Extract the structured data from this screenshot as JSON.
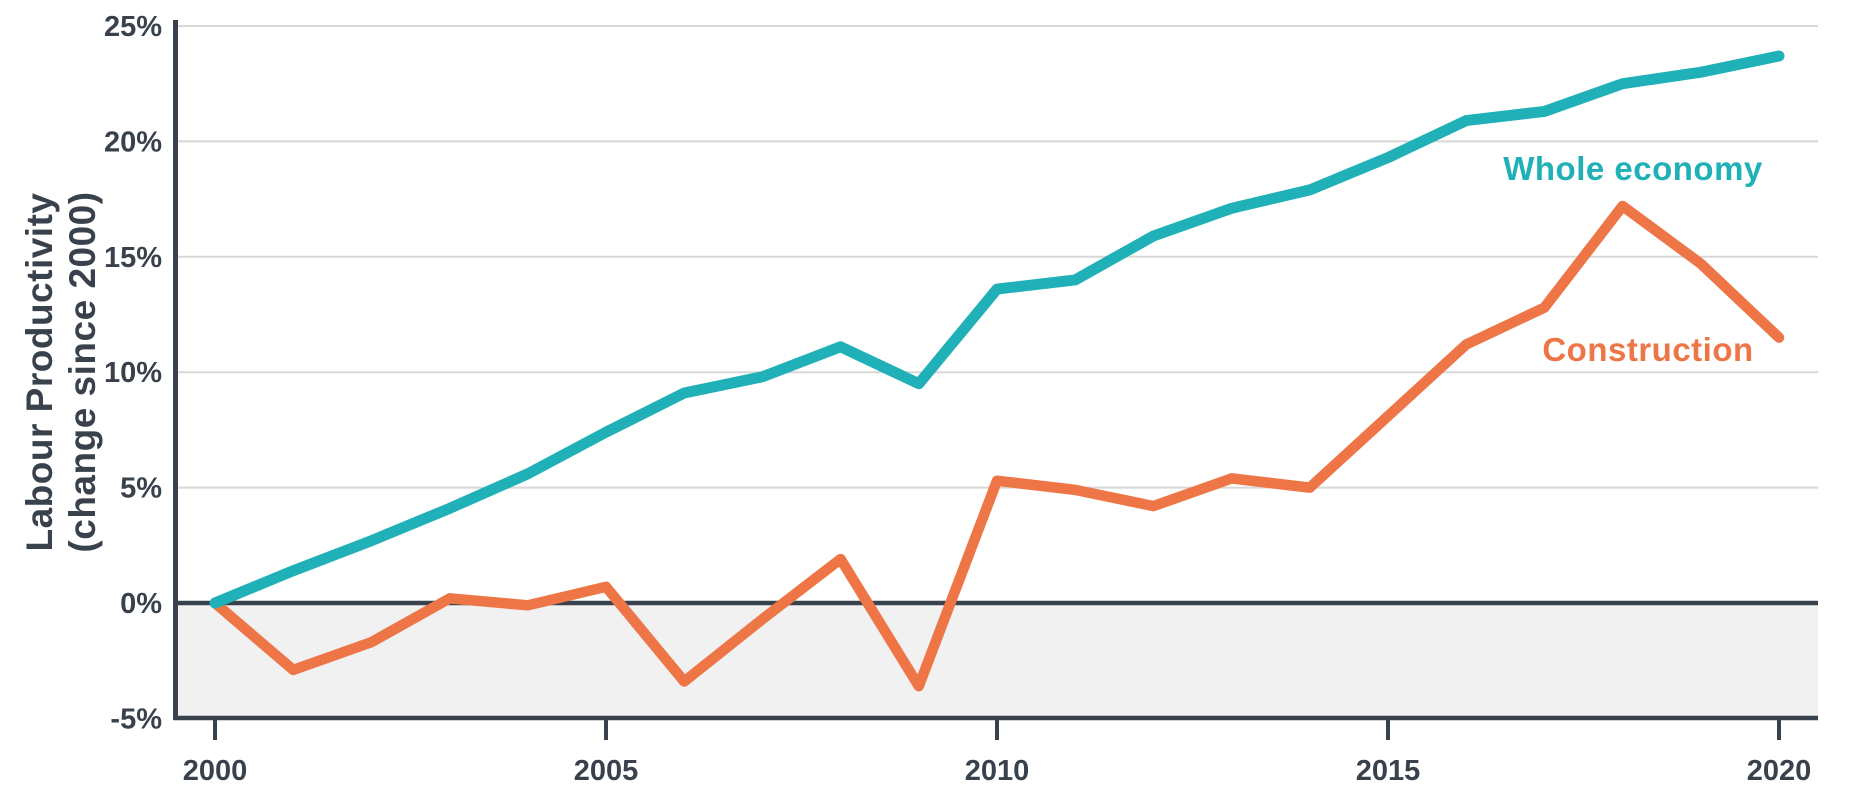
{
  "chart_data": {
    "type": "line",
    "title": "",
    "xlabel": "",
    "ylabel": "Labour Productivity (change since 2000)",
    "ylabel_lines": [
      "Labour Productivity",
      "(change since 2000)"
    ],
    "x": [
      2000,
      2001,
      2002,
      2003,
      2004,
      2005,
      2006,
      2007,
      2008,
      2009,
      2010,
      2011,
      2012,
      2013,
      2014,
      2015,
      2016,
      2017,
      2018,
      2019,
      2020
    ],
    "series": [
      {
        "name": "Whole economy",
        "color": "#1fb1b7",
        "values": [
          0,
          1.4,
          2.7,
          4.1,
          5.6,
          7.4,
          9.1,
          9.8,
          11.1,
          9.5,
          13.6,
          14.0,
          15.9,
          17.1,
          17.9,
          19.3,
          20.9,
          21.3,
          22.5,
          23.0,
          23.7
        ]
      },
      {
        "name": "Construction",
        "color": "#ee7546",
        "values": [
          0,
          -2.9,
          -1.7,
          0.2,
          -0.1,
          0.7,
          -3.4,
          -0.7,
          1.9,
          -3.6,
          5.3,
          4.9,
          4.2,
          5.4,
          5.0,
          8.1,
          11.2,
          12.8,
          17.2,
          14.7,
          11.5
        ]
      }
    ],
    "y_axis": {
      "unit": "%",
      "min": -5,
      "max": 25,
      "tick_step": 5,
      "tick_values": [
        25,
        20,
        15,
        10,
        5,
        0,
        -5
      ],
      "tick_labels": [
        "25%",
        "20%",
        "15%",
        "10%",
        "5%",
        "0%",
        "-5%"
      ]
    },
    "x_axis": {
      "tick_values": [
        2000,
        2005,
        2010,
        2015,
        2020
      ],
      "tick_labels": [
        "2000",
        "2005",
        "2010",
        "2015",
        "2020"
      ]
    },
    "grid": "horizontal",
    "legend_position": "inline-right-of-lines",
    "below_zero_shading": true,
    "colors": {
      "axis_and_text": "#39424c",
      "gridline": "#d8d8d8",
      "below_zero_shade": "#f1f1f2"
    }
  }
}
